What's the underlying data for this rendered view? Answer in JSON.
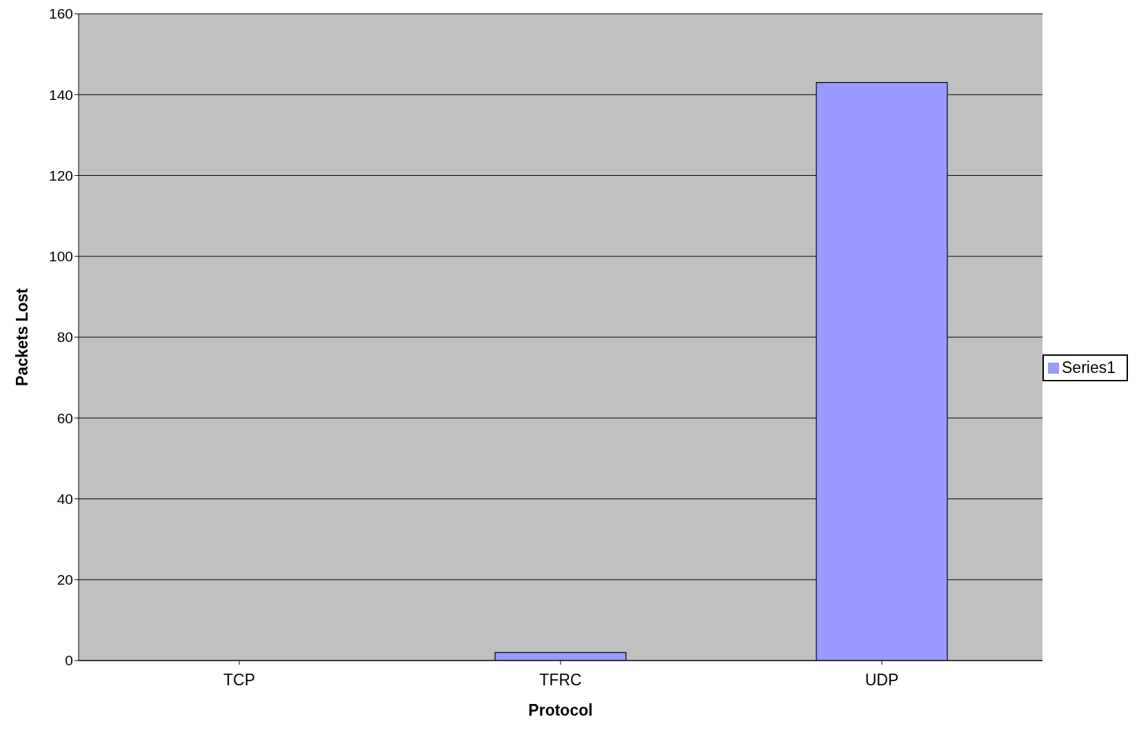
{
  "chart_data": {
    "type": "bar",
    "xlabel": "Protocol",
    "ylabel": "Packets Lost",
    "categories": [
      "TCP",
      "TFRC",
      "UDP"
    ],
    "series": [
      {
        "name": "Series1",
        "color": "#9999ff",
        "values": [
          0,
          2,
          143
        ]
      }
    ],
    "ylim": [
      0,
      160
    ],
    "yticks": [
      0,
      20,
      40,
      60,
      80,
      100,
      120,
      140,
      160
    ],
    "grid": "y",
    "legend": "right"
  }
}
